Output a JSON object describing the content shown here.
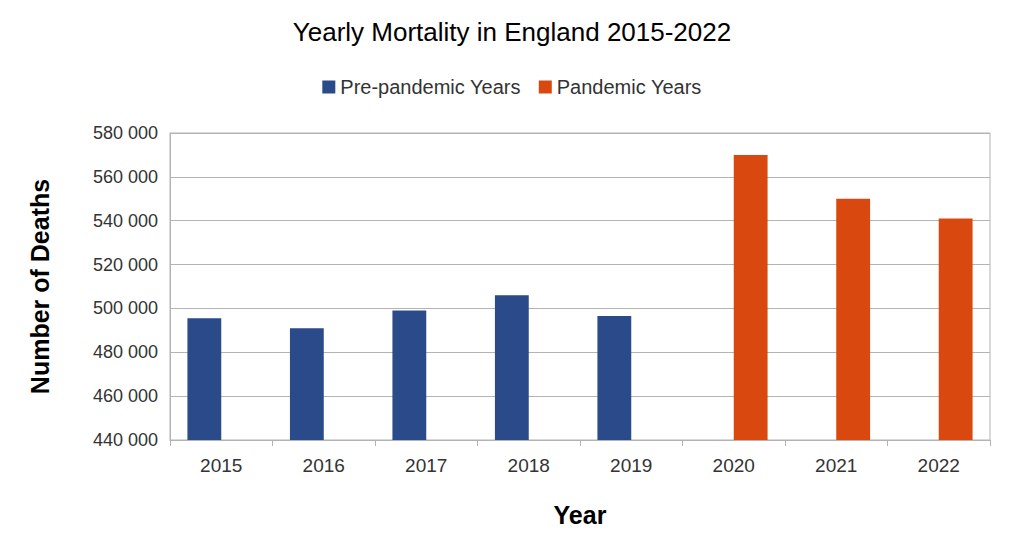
{
  "chart_data": {
    "type": "bar",
    "title": "Yearly Mortality in England 2015-2022",
    "x_label": "Year",
    "y_label": "Number of Deaths",
    "categories": [
      "2015",
      "2016",
      "2017",
      "2018",
      "2019",
      "2020",
      "2021",
      "2022"
    ],
    "series": [
      {
        "name": "Pre-pandemic Years",
        "color": "#2a4a8a",
        "values": [
          495500,
          491000,
          499000,
          506000,
          496500,
          null,
          null,
          null
        ]
      },
      {
        "name": "Pandemic Years",
        "color": "#d9480f",
        "values": [
          null,
          null,
          null,
          null,
          null,
          570000,
          550000,
          541000
        ]
      }
    ],
    "ylim": [
      440000,
      580000
    ],
    "yticks": [
      {
        "value": 440000,
        "label": "440 000"
      },
      {
        "value": 460000,
        "label": "460 000"
      },
      {
        "value": 480000,
        "label": "480 000"
      },
      {
        "value": 500000,
        "label": "500 000"
      },
      {
        "value": 520000,
        "label": "520 000"
      },
      {
        "value": 540000,
        "label": "540 000"
      },
      {
        "value": 560000,
        "label": "560 000"
      },
      {
        "value": 580000,
        "label": "580 000"
      }
    ],
    "grid": true,
    "legend": "top"
  }
}
